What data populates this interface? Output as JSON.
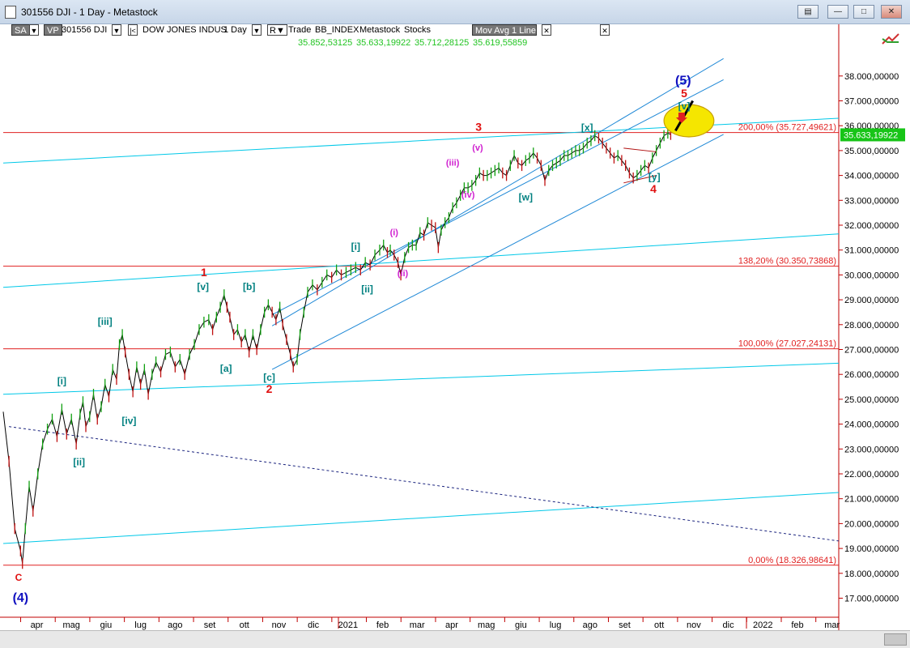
{
  "window": {
    "title": "301556 DJI - 1 Day - Metastock",
    "buttons": [
      "restore",
      "minimize",
      "maximize",
      "close"
    ]
  },
  "toolbar": {
    "sa": "SA",
    "vp": "VP",
    "symbol": "301556 DJI",
    "name": "DOW JONES INDUS",
    "period": "1 Day",
    "r": "R",
    "trade": "Trade",
    "index": "BB_INDEX",
    "source": "Metastock",
    "kind": "Stocks",
    "indicator": "Mov Avg 1 Line",
    "ohlc": [
      "35.852,53125",
      "35.633,19922",
      "35.712,28125",
      "35.619,55859"
    ]
  },
  "chart_data": {
    "type": "line",
    "x_axis": {
      "labels": [
        "apr",
        "mag",
        "giu",
        "lug",
        "ago",
        "set",
        "ott",
        "nov",
        "dic",
        "2021",
        "feb",
        "mar",
        "apr",
        "mag",
        "giu",
        "lug",
        "ago",
        "set",
        "ott",
        "nov",
        "dic",
        "2022",
        "feb",
        "mar"
      ]
    },
    "y_axis": {
      "ylim": [
        16000,
        39000
      ],
      "ticks": [
        "38.000,00000",
        "37.000,00000",
        "36.000,00000",
        "35.000,00000",
        "34.000,00000",
        "33.000,00000",
        "32.000,00000",
        "31.000,00000",
        "30.000,00000",
        "29.000,00000",
        "28.000,00000",
        "27.000,00000",
        "26.000,00000",
        "25.000,00000",
        "24.000,00000",
        "23.000,00000",
        "22.000,00000",
        "21.000,00000",
        "20.000,00000",
        "19.000,00000",
        "18.000,00000",
        "17.000,00000",
        "16.000,00000"
      ],
      "last_price_label": "35.633,19922"
    },
    "fib_levels": [
      {
        "label": "200,00% (35.727,49621)",
        "value": 35727.5
      },
      {
        "label": "138,20% (30.350,73868)",
        "value": 30350.7
      },
      {
        "label": "100,00% (27.027,24131)",
        "value": 27027.2
      },
      {
        "label": "0,00% (18.326,98641)",
        "value": 18327.0
      }
    ],
    "series": [
      {
        "values": [
          [
            0.0,
            24500
          ],
          [
            0.3,
            22500
          ],
          [
            0.6,
            19800
          ],
          [
            0.9,
            18900
          ],
          [
            1.0,
            18400
          ],
          [
            1.15,
            19800
          ],
          [
            1.35,
            21500
          ],
          [
            1.55,
            20500
          ],
          [
            1.8,
            22000
          ],
          [
            2.05,
            23200
          ],
          [
            2.3,
            23800
          ],
          [
            2.55,
            24200
          ],
          [
            2.8,
            23500
          ],
          [
            3.05,
            24600
          ],
          [
            3.3,
            23600
          ],
          [
            3.55,
            24200
          ],
          [
            3.8,
            23200
          ],
          [
            4.0,
            24400
          ],
          [
            4.15,
            24900
          ],
          [
            4.3,
            23900
          ],
          [
            4.5,
            24300
          ],
          [
            4.7,
            25200
          ],
          [
            4.9,
            24200
          ],
          [
            5.1,
            24700
          ],
          [
            5.3,
            25600
          ],
          [
            5.5,
            25100
          ],
          [
            5.7,
            26200
          ],
          [
            5.9,
            25800
          ],
          [
            6.05,
            27200
          ],
          [
            6.2,
            27600
          ],
          [
            6.35,
            26900
          ],
          [
            6.55,
            26000
          ],
          [
            6.75,
            25300
          ],
          [
            6.95,
            26300
          ],
          [
            7.15,
            25600
          ],
          [
            7.35,
            26200
          ],
          [
            7.55,
            25200
          ],
          [
            7.75,
            26000
          ],
          [
            7.95,
            26500
          ],
          [
            8.2,
            26100
          ],
          [
            8.45,
            26800
          ],
          [
            8.7,
            26900
          ],
          [
            8.95,
            26300
          ],
          [
            9.2,
            26600
          ],
          [
            9.45,
            26000
          ],
          [
            9.7,
            26800
          ],
          [
            9.95,
            27200
          ],
          [
            10.2,
            27800
          ],
          [
            10.45,
            28100
          ],
          [
            10.7,
            28200
          ],
          [
            10.9,
            27800
          ],
          [
            11.1,
            28300
          ],
          [
            11.3,
            28700
          ],
          [
            11.5,
            29200
          ],
          [
            11.65,
            28700
          ],
          [
            11.8,
            28300
          ],
          [
            12.0,
            27600
          ],
          [
            12.2,
            27800
          ],
          [
            12.4,
            27300
          ],
          [
            12.6,
            27600
          ],
          [
            12.8,
            26900
          ],
          [
            13.0,
            27600
          ],
          [
            13.2,
            27000
          ],
          [
            13.4,
            27800
          ],
          [
            13.6,
            28500
          ],
          [
            13.8,
            28800
          ],
          [
            14.0,
            28500
          ],
          [
            14.2,
            28200
          ],
          [
            14.4,
            28700
          ],
          [
            14.55,
            28000
          ],
          [
            14.75,
            27400
          ],
          [
            14.95,
            26800
          ],
          [
            15.1,
            26300
          ],
          [
            15.3,
            26600
          ],
          [
            15.45,
            27600
          ],
          [
            15.65,
            28500
          ],
          [
            15.85,
            29300
          ],
          [
            16.1,
            29600
          ],
          [
            16.35,
            29400
          ],
          [
            16.6,
            29700
          ],
          [
            16.85,
            30000
          ],
          [
            17.1,
            29900
          ],
          [
            17.35,
            30200
          ],
          [
            17.6,
            30000
          ],
          [
            17.85,
            30100
          ],
          [
            18.1,
            30200
          ],
          [
            18.35,
            30300
          ],
          [
            18.6,
            30200
          ],
          [
            18.85,
            30500
          ],
          [
            19.1,
            30400
          ],
          [
            19.35,
            30800
          ],
          [
            19.6,
            31000
          ],
          [
            19.8,
            31200
          ],
          [
            20.0,
            30900
          ],
          [
            20.15,
            31000
          ],
          [
            20.35,
            30800
          ],
          [
            20.55,
            30500
          ],
          [
            20.7,
            30000
          ],
          [
            20.9,
            30700
          ],
          [
            21.1,
            31100
          ],
          [
            21.3,
            31200
          ],
          [
            21.5,
            31200
          ],
          [
            21.7,
            31700
          ],
          [
            21.9,
            31600
          ],
          [
            22.1,
            32100
          ],
          [
            22.3,
            32000
          ],
          [
            22.5,
            31900
          ],
          [
            22.65,
            31100
          ],
          [
            22.8,
            31800
          ],
          [
            23.0,
            32100
          ],
          [
            23.2,
            32300
          ],
          [
            23.4,
            32700
          ],
          [
            23.6,
            32900
          ],
          [
            23.8,
            33200
          ],
          [
            24.0,
            33500
          ],
          [
            24.2,
            33500
          ],
          [
            24.4,
            33600
          ],
          [
            24.6,
            33800
          ],
          [
            24.8,
            34100
          ],
          [
            25.0,
            34000
          ],
          [
            25.2,
            34000
          ],
          [
            25.4,
            34100
          ],
          [
            25.6,
            34200
          ],
          [
            25.8,
            34300
          ],
          [
            26.0,
            34100
          ],
          [
            26.2,
            34000
          ],
          [
            26.4,
            34400
          ],
          [
            26.6,
            34800
          ],
          [
            26.8,
            34500
          ],
          [
            27.0,
            34400
          ],
          [
            27.2,
            34600
          ],
          [
            27.4,
            34700
          ],
          [
            27.6,
            34900
          ],
          [
            27.8,
            34700
          ],
          [
            28.0,
            34400
          ],
          [
            28.2,
            33800
          ],
          [
            28.4,
            34200
          ],
          [
            28.6,
            34400
          ],
          [
            28.8,
            34500
          ],
          [
            29.0,
            34600
          ],
          [
            29.2,
            34800
          ],
          [
            29.4,
            34800
          ],
          [
            29.6,
            34900
          ],
          [
            29.8,
            35000
          ],
          [
            30.0,
            35000
          ],
          [
            30.2,
            35100
          ],
          [
            30.4,
            35300
          ],
          [
            30.6,
            35400
          ],
          [
            30.8,
            35600
          ],
          [
            31.0,
            35500
          ],
          [
            31.2,
            35300
          ],
          [
            31.4,
            35100
          ],
          [
            31.6,
            34900
          ],
          [
            31.8,
            34700
          ],
          [
            32.0,
            34800
          ],
          [
            32.2,
            34600
          ],
          [
            32.4,
            34400
          ],
          [
            32.6,
            34100
          ],
          [
            32.8,
            33900
          ],
          [
            33.0,
            34000
          ],
          [
            33.2,
            34200
          ],
          [
            33.4,
            34400
          ],
          [
            33.6,
            34300
          ],
          [
            33.8,
            34700
          ],
          [
            34.0,
            35000
          ],
          [
            34.2,
            35300
          ],
          [
            34.4,
            35600
          ],
          [
            34.6,
            35700
          ],
          [
            34.75,
            35650
          ]
        ]
      }
    ],
    "channels": [
      {
        "p1": [
          14.0,
          27950
        ],
        "p2": [
          37.5,
          38700
        ]
      },
      {
        "p1": [
          14.0,
          28400
        ],
        "p2": [
          37.5,
          37850
        ]
      },
      {
        "p1": [
          14.0,
          26200
        ],
        "p2": [
          37.5,
          35650
        ]
      }
    ],
    "long_lines": [
      {
        "p1": [
          0,
          29500
        ],
        "p2": [
          43.5,
          31650
        ],
        "color": "#00c8e8"
      },
      {
        "p1": [
          0,
          25200
        ],
        "p2": [
          43.5,
          26450
        ],
        "color": "#00c8e8"
      },
      {
        "p1": [
          0,
          19200
        ],
        "p2": [
          43.5,
          21250
        ],
        "color": "#00c8e8"
      },
      {
        "p1": [
          0,
          34500
        ],
        "p2": [
          43.5,
          36300
        ],
        "color": "#00c8e8"
      }
    ],
    "dotted_line": {
      "p1": [
        0.3,
        23900
      ],
      "p2": [
        43.5,
        19300
      ]
    },
    "triangle": {
      "top": [
        [
          32.3,
          35100
        ],
        [
          34.0,
          34950
        ]
      ],
      "bottom": [
        [
          32.3,
          33700
        ],
        [
          34.0,
          34000
        ]
      ]
    },
    "target_ellipse": {
      "center": [
        35.7,
        36200
      ],
      "rx": 1.3,
      "ry": 650
    },
    "target_line": {
      "p1": [
        35.0,
        35800
      ],
      "p2": [
        35.9,
        37000
      ]
    },
    "wave_labels": [
      {
        "text": "(5)",
        "x": 35.4,
        "y": 37650,
        "color": "#1010c0",
        "size": 16
      },
      {
        "text": "5",
        "x": 35.45,
        "y": 37150,
        "color": "#e01010",
        "size": 14
      },
      {
        "text": "[v]",
        "x": 35.45,
        "y": 36650,
        "color": "#008080",
        "size": 12
      },
      {
        "text": "3",
        "x": 24.75,
        "y": 35800,
        "color": "#e01010",
        "size": 14
      },
      {
        "text": "[x]",
        "x": 30.4,
        "y": 35800,
        "color": "#008080",
        "size": 12
      },
      {
        "text": "(v)",
        "x": 24.7,
        "y": 35000,
        "color": "#d020d0",
        "size": 11
      },
      {
        "text": "(iii)",
        "x": 23.4,
        "y": 34400,
        "color": "#d020d0",
        "size": 11
      },
      {
        "text": "(iv)",
        "x": 24.2,
        "y": 33100,
        "color": "#d020d0",
        "size": 11
      },
      {
        "text": "[w]",
        "x": 27.2,
        "y": 33000,
        "color": "#008080",
        "size": 12
      },
      {
        "text": "[y]",
        "x": 33.9,
        "y": 33800,
        "color": "#008080",
        "size": 12
      },
      {
        "text": "4",
        "x": 33.85,
        "y": 33300,
        "color": "#e01010",
        "size": 14
      },
      {
        "text": "(i)",
        "x": 20.35,
        "y": 31600,
        "color": "#d020d0",
        "size": 11
      },
      {
        "text": "[i]",
        "x": 18.35,
        "y": 31000,
        "color": "#008080",
        "size": 12
      },
      {
        "text": "(ii)",
        "x": 20.8,
        "y": 29950,
        "color": "#d020d0",
        "size": 11
      },
      {
        "text": "[ii]",
        "x": 18.95,
        "y": 29300,
        "color": "#008080",
        "size": 12
      },
      {
        "text": "1",
        "x": 10.45,
        "y": 29950,
        "color": "#e01010",
        "size": 14
      },
      {
        "text": "[v]",
        "x": 10.4,
        "y": 29400,
        "color": "#008080",
        "size": 12
      },
      {
        "text": "[b]",
        "x": 12.8,
        "y": 29400,
        "color": "#008080",
        "size": 12
      },
      {
        "text": "[iii]",
        "x": 5.3,
        "y": 28000,
        "color": "#008080",
        "size": 12
      },
      {
        "text": "[a]",
        "x": 11.6,
        "y": 26100,
        "color": "#008080",
        "size": 12
      },
      {
        "text": "[c]",
        "x": 13.85,
        "y": 25750,
        "color": "#008080",
        "size": 12
      },
      {
        "text": "2",
        "x": 13.85,
        "y": 25250,
        "color": "#e01010",
        "size": 14
      },
      {
        "text": "[i]",
        "x": 3.05,
        "y": 25600,
        "color": "#008080",
        "size": 12
      },
      {
        "text": "[iv]",
        "x": 6.55,
        "y": 24000,
        "color": "#008080",
        "size": 12
      },
      {
        "text": "[ii]",
        "x": 3.95,
        "y": 22350,
        "color": "#008080",
        "size": 12
      },
      {
        "text": "C",
        "x": 0.8,
        "y": 17700,
        "color": "#e01010",
        "size": 12
      },
      {
        "text": "(4)",
        "x": 0.9,
        "y": 16850,
        "color": "#1010c0",
        "size": 16
      }
    ]
  }
}
